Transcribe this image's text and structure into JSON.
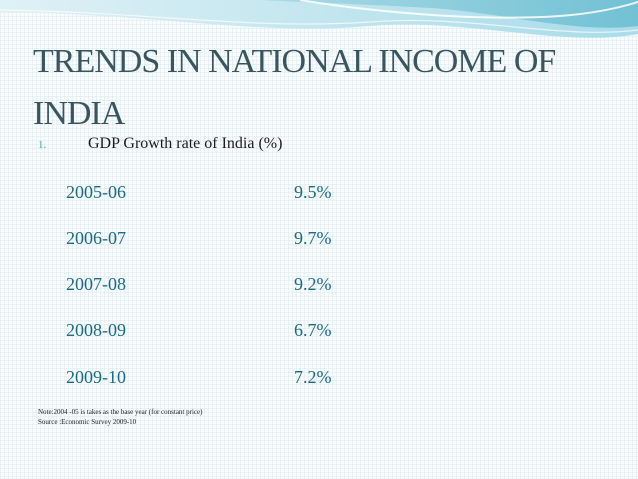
{
  "slide": {
    "title": "TRENDS IN NATIONAL INCOME OF INDIA",
    "list_number": "1.",
    "subtitle": "GDP Growth rate of India  (%)",
    "rows": [
      {
        "year": "2005-06",
        "rate": "9.5%"
      },
      {
        "year": "2006-07",
        "rate": "9.7%"
      },
      {
        "year": "2007-08",
        "rate": "9.2%"
      },
      {
        "year": "2008-09",
        "rate": "6.7%"
      },
      {
        "year": "2009-10",
        "rate": "7.2%"
      }
    ],
    "note_line1": "Note:2004 -05 is takes as the base year (for constant price)",
    "note_line2": "Source :Economic Survey 2009-10"
  },
  "colors": {
    "title": "#3a5560",
    "accent": "#3aa6b9",
    "data_text": "#1c6a7f",
    "wave_light": "#dff1f6",
    "wave_mid": "#9fd6e4",
    "wave_dark": "#5fb8cc"
  }
}
